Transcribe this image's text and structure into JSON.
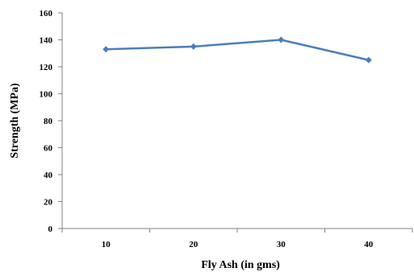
{
  "chart_data": {
    "type": "line",
    "title": "",
    "xlabel": "Fly Ash (in gms)",
    "ylabel": "Strength (MPa)",
    "categories": [
      "10",
      "20",
      "30",
      "40"
    ],
    "y_ticks": [
      "0",
      "20",
      "40",
      "60",
      "80",
      "100",
      "120",
      "140",
      "160"
    ],
    "ylim": [
      0,
      160
    ],
    "grid": false,
    "legend": "none",
    "series": [
      {
        "values": [
          133,
          135,
          140,
          125
        ],
        "color": "#4a7ebb",
        "marker": "diamond"
      }
    ]
  }
}
